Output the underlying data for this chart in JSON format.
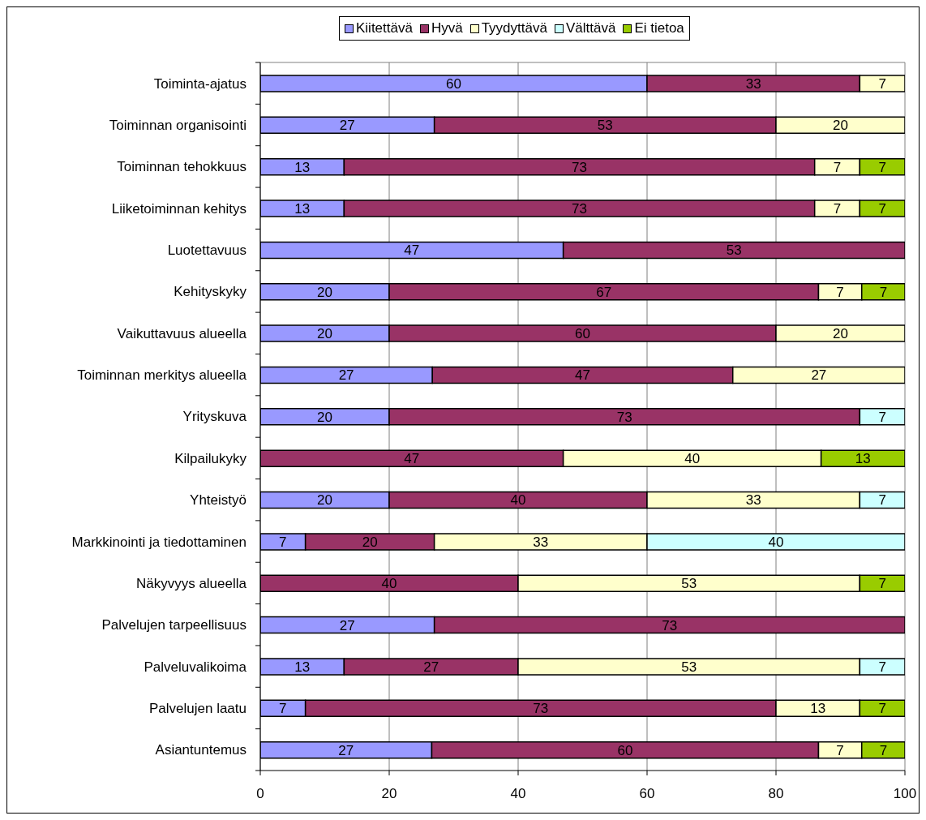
{
  "chart_data": {
    "type": "bar",
    "orientation": "horizontal",
    "stacked": true,
    "categories": [
      "Toiminta-ajatus",
      "Toiminnan organisointi",
      "Toiminnan tehokkuus",
      "Liiketoiminnan kehitys",
      "Luotettavuus",
      "Kehityskyky",
      "Vaikuttavuus alueella",
      "Toiminnan merkitys alueella",
      "Yrityskuva",
      "Kilpailukyky",
      "Yhteistyö",
      "Markkinointi ja tiedottaminen",
      "Näkyvyys alueella",
      "Palvelujen tarpeellisuus",
      "Palveluvalikoima",
      "Palvelujen laatu",
      "Asiantuntemus"
    ],
    "series": [
      {
        "name": "Kiitettävä",
        "color": "#9999ff",
        "values": [
          60,
          27,
          13,
          13,
          47,
          20,
          20,
          26.7,
          20,
          null,
          20,
          7,
          null,
          27,
          13,
          7,
          26.6
        ],
        "value_labels": [
          "60",
          "27",
          "13",
          "13",
          "47",
          "20",
          "20",
          "27",
          "20",
          null,
          "20",
          "7",
          null,
          "27",
          "13",
          "7",
          "27"
        ]
      },
      {
        "name": "Hyvä",
        "color": "#993366",
        "values": [
          33,
          53,
          73,
          73,
          53,
          66.6,
          60,
          46.6,
          73,
          47,
          40,
          20,
          40,
          73,
          27,
          73,
          60
        ],
        "value_labels": [
          "33",
          "53",
          "73",
          "73",
          "53",
          "67",
          "60",
          "47",
          "73",
          "47",
          "40",
          "20",
          "40",
          "73",
          "27",
          "73",
          "60"
        ]
      },
      {
        "name": "Tyydyttävä",
        "color": "#ffffcc",
        "values": [
          7,
          20,
          7,
          7,
          null,
          6.7,
          20,
          26.7,
          null,
          40,
          33,
          33,
          53,
          null,
          53,
          13,
          6.7
        ],
        "value_labels": [
          "7",
          "20",
          "7",
          "7",
          null,
          "7",
          "20",
          "27",
          null,
          "40",
          "33",
          "33",
          "53",
          null,
          "53",
          "13",
          "7"
        ]
      },
      {
        "name": "Välttävä",
        "color": "#ccffff",
        "values": [
          null,
          null,
          null,
          null,
          null,
          null,
          null,
          null,
          7,
          null,
          7,
          40,
          null,
          null,
          7,
          null,
          null
        ],
        "value_labels": [
          null,
          null,
          null,
          null,
          null,
          null,
          null,
          null,
          "7",
          null,
          "7",
          "40",
          null,
          null,
          "7",
          null,
          null
        ]
      },
      {
        "name": "Ei tietoa",
        "color": "#99cc00",
        "values": [
          null,
          null,
          7,
          7,
          null,
          6.7,
          null,
          null,
          null,
          13,
          null,
          null,
          7,
          null,
          null,
          7,
          6.7
        ],
        "value_labels": [
          null,
          null,
          "7",
          "7",
          null,
          "7",
          null,
          null,
          null,
          "13",
          null,
          null,
          "7",
          null,
          null,
          "7",
          "7"
        ]
      }
    ],
    "xlim": [
      0,
      100
    ],
    "xticks": [
      0,
      20,
      40,
      60,
      80,
      100
    ],
    "grid": "x",
    "legend": "top"
  }
}
